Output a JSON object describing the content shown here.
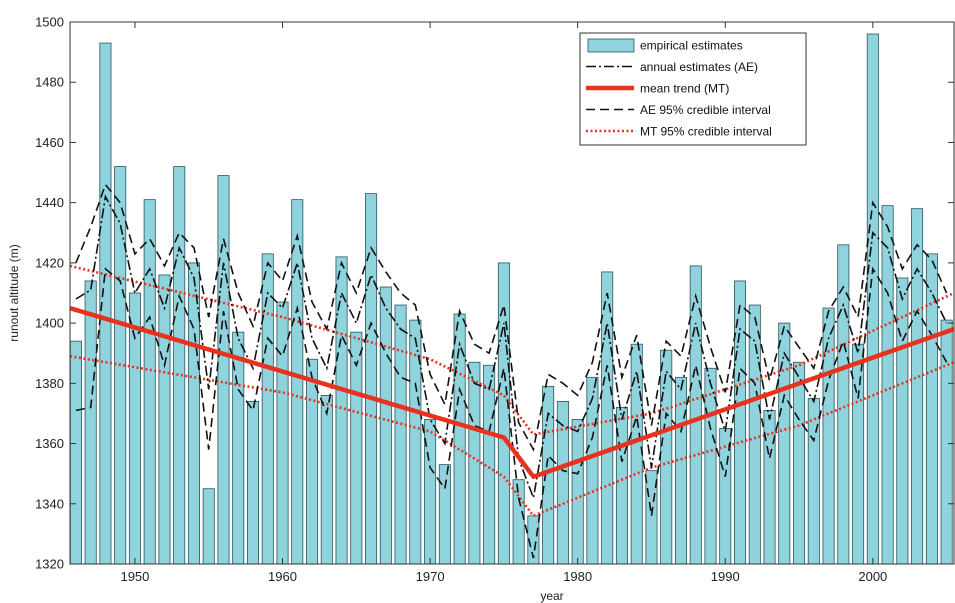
{
  "chart_data": {
    "type": "bar",
    "xlabel": "year",
    "ylabel": "runout altitude (m)",
    "xlim": [
      1945.6,
      2005.5
    ],
    "ylim": [
      1320,
      1500
    ],
    "x_ticks": [
      1950,
      1960,
      1970,
      1980,
      1990,
      2000
    ],
    "y_ticks": [
      1320,
      1340,
      1360,
      1380,
      1400,
      1420,
      1440,
      1460,
      1480,
      1500
    ],
    "legend_position": "top-right",
    "grid": false,
    "colors": {
      "bar_fill": "#8fd3dc",
      "bar_edge": "#2a5560",
      "ae_line": "#111111",
      "mt_line": "#e8321e",
      "mt_ci": "#e8321e",
      "ae_ci": "#111111"
    },
    "legend": [
      {
        "key": "bars",
        "label": "empirical estimates"
      },
      {
        "key": "ae",
        "label": "annual estimates (AE)"
      },
      {
        "key": "mt",
        "label": "mean trend (MT)"
      },
      {
        "key": "ae_ci",
        "label": "AE 95% credible interval"
      },
      {
        "key": "mt_ci",
        "label": "MT 95% credible interval"
      }
    ],
    "years": [
      1946,
      1947,
      1948,
      1949,
      1950,
      1951,
      1952,
      1953,
      1954,
      1955,
      1956,
      1957,
      1958,
      1959,
      1960,
      1961,
      1962,
      1963,
      1964,
      1965,
      1966,
      1967,
      1968,
      1969,
      1970,
      1971,
      1972,
      1973,
      1974,
      1975,
      1976,
      1977,
      1978,
      1979,
      1980,
      1981,
      1982,
      1983,
      1984,
      1985,
      1986,
      1987,
      1988,
      1989,
      1990,
      1991,
      1992,
      1993,
      1994,
      1995,
      1996,
      1997,
      1998,
      1999,
      2000,
      2001,
      2002,
      2003,
      2004,
      2005
    ],
    "empirical_estimates": [
      1394,
      1414,
      1493,
      1452,
      1410,
      1441,
      1416,
      1452,
      1420,
      1345,
      1449,
      1397,
      1374,
      1423,
      1407,
      1441,
      1388,
      1376,
      1422,
      1397,
      1443,
      1412,
      1406,
      1401,
      1368,
      1353,
      1403,
      1387,
      1386,
      1420,
      1348,
      1336,
      1379,
      1374,
      1368,
      1382,
      1417,
      1372,
      1393,
      1351,
      1391,
      1382,
      1419,
      1385,
      1365,
      1414,
      1406,
      1371,
      1400,
      1387,
      1375,
      1405,
      1426,
      1393,
      1496,
      1439,
      1415,
      1438,
      1423,
      1401
    ],
    "annual_estimates": [
      1408,
      1411,
      1442,
      1433,
      1410,
      1418,
      1405,
      1425,
      1415,
      1378,
      1420,
      1395,
      1385,
      1410,
      1405,
      1420,
      1395,
      1385,
      1410,
      1400,
      1416,
      1405,
      1398,
      1395,
      1368,
      1360,
      1393,
      1380,
      1378,
      1400,
      1355,
      1342,
      1370,
      1366,
      1364,
      1375,
      1400,
      1368,
      1384,
      1352,
      1384,
      1378,
      1400,
      1380,
      1364,
      1398,
      1394,
      1368,
      1390,
      1382,
      1374,
      1395,
      1406,
      1390,
      1430,
      1425,
      1408,
      1418,
      1410,
      1400
    ],
    "mean_trend": [
      {
        "x": 1945.6,
        "y": 1405
      },
      {
        "x": 1975,
        "y": 1362
      },
      {
        "x": 1977,
        "y": 1349
      },
      {
        "x": 2005.5,
        "y": 1398
      }
    ],
    "mt_ci_upper": [
      {
        "x": 1945.6,
        "y": 1419
      },
      {
        "x": 1960,
        "y": 1402
      },
      {
        "x": 1970,
        "y": 1388
      },
      {
        "x": 1975,
        "y": 1376
      },
      {
        "x": 1977,
        "y": 1363
      },
      {
        "x": 1985,
        "y": 1370
      },
      {
        "x": 1995,
        "y": 1386
      },
      {
        "x": 2005.5,
        "y": 1410
      }
    ],
    "mt_ci_lower": [
      {
        "x": 1945.6,
        "y": 1389
      },
      {
        "x": 1960,
        "y": 1377
      },
      {
        "x": 1970,
        "y": 1364
      },
      {
        "x": 1975,
        "y": 1349
      },
      {
        "x": 1977,
        "y": 1336
      },
      {
        "x": 1985,
        "y": 1352
      },
      {
        "x": 1995,
        "y": 1366
      },
      {
        "x": 2005.5,
        "y": 1387
      }
    ],
    "ae_ci_upper": [
      1420,
      1432,
      1446,
      1440,
      1423,
      1428,
      1419,
      1430,
      1425,
      1402,
      1428,
      1410,
      1399,
      1420,
      1414,
      1429,
      1407,
      1398,
      1420,
      1410,
      1425,
      1417,
      1410,
      1406,
      1383,
      1373,
      1404,
      1393,
      1390,
      1406,
      1367,
      1358,
      1383,
      1380,
      1376,
      1387,
      1410,
      1382,
      1396,
      1366,
      1394,
      1389,
      1409,
      1392,
      1377,
      1406,
      1402,
      1381,
      1399,
      1392,
      1385,
      1404,
      1412,
      1402,
      1440,
      1432,
      1418,
      1426,
      1421,
      1410
    ],
    "ae_ci_lower": [
      1371,
      1372,
      1418,
      1414,
      1395,
      1402,
      1386,
      1409,
      1398,
      1358,
      1404,
      1378,
      1371,
      1395,
      1389,
      1405,
      1382,
      1370,
      1396,
      1386,
      1400,
      1390,
      1382,
      1380,
      1352,
      1345,
      1378,
      1366,
      1364,
      1385,
      1342,
      1322,
      1356,
      1351,
      1350,
      1362,
      1386,
      1354,
      1369,
      1336,
      1370,
      1364,
      1386,
      1365,
      1349,
      1385,
      1380,
      1355,
      1376,
      1368,
      1361,
      1381,
      1394,
      1375,
      1418,
      1410,
      1394,
      1404,
      1396,
      1387
    ]
  }
}
